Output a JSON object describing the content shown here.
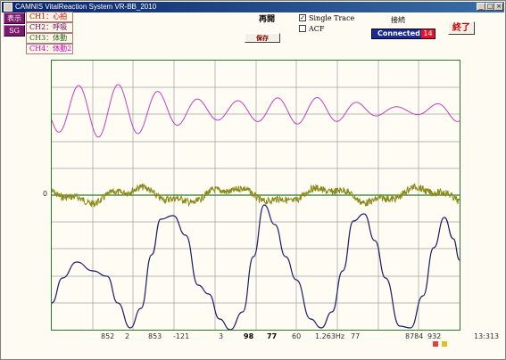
{
  "window": {
    "title": "CAMNIS VitalReaction System VR-BB_2010",
    "minimize": "_",
    "maximize": "□",
    "close": "×"
  },
  "side_buttons": {
    "display": "表示",
    "sg": "SG"
  },
  "channels": [
    {
      "label": "CH1：心拍",
      "color": "#cc0000"
    },
    {
      "label": "CH2：呼吸",
      "color": "#660066"
    },
    {
      "label": "CH3：体動",
      "color": "#226622"
    },
    {
      "label": "CH4：体動2",
      "color": "#cc00cc"
    }
  ],
  "controls": {
    "restart": "再開",
    "save": "保存",
    "single_trace": {
      "label": "Single Trace",
      "checked": true
    },
    "acf": {
      "label": "ACF",
      "checked": false
    },
    "connect": "接続",
    "exit": "終了"
  },
  "status": {
    "text": "Connected",
    "count": "14"
  },
  "plot": {
    "zero_label": "0",
    "bottom_labels": [
      {
        "text": "852",
        "bold": false
      },
      {
        "text": "2",
        "bold": false
      },
      {
        "text": "853",
        "bold": false
      },
      {
        "text": "-121",
        "bold": false
      },
      {
        "text": "3",
        "bold": false
      },
      {
        "text": "98",
        "bold": true
      },
      {
        "text": "77",
        "bold": true
      },
      {
        "text": "60",
        "bold": false
      },
      {
        "text": "1.263Hz",
        "bold": false
      },
      {
        "text": "77",
        "bold": false
      },
      {
        "text": "8784",
        "bold": false
      },
      {
        "text": "932",
        "bold": false
      }
    ],
    "time": "13:313",
    "colors": {
      "magenta": "#c040c0",
      "olive": "#8a8a1a",
      "navy": "#1a1a6a",
      "grid": "#a0a0a0",
      "zero_line": "#2a7a2a"
    }
  },
  "indicators": {
    "red": "#e04040",
    "yellow": "#e0c020"
  }
}
